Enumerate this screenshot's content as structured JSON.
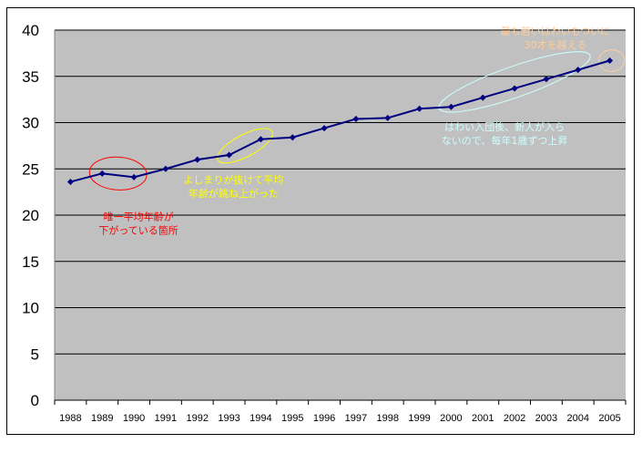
{
  "chart_data": {
    "type": "line",
    "title": "",
    "xlabel": "",
    "ylabel": "",
    "ylim": [
      0,
      40
    ],
    "yticks": [
      0,
      5,
      10,
      15,
      20,
      25,
      30,
      35,
      40
    ],
    "categories": [
      "1988",
      "1989",
      "1990",
      "1991",
      "1992",
      "1993",
      "1994",
      "1995",
      "1996",
      "1997",
      "1998",
      "1999",
      "2000",
      "2001",
      "2002",
      "2003",
      "2004",
      "2005"
    ],
    "series": [
      {
        "values": [
          23.6,
          24.5,
          24.1,
          25.0,
          26.0,
          26.5,
          28.2,
          28.4,
          29.4,
          30.4,
          30.5,
          31.5,
          31.7,
          32.7,
          33.7,
          34.7,
          35.7,
          36.7
        ]
      }
    ],
    "grid": true,
    "legend": "none",
    "colors": {
      "plot_background": "#c0c0c0",
      "line": "#000080",
      "gridline": "#000000"
    },
    "annotations": [
      {
        "lines": [
          "唯一平均年齢が",
          "下がっている箇所"
        ],
        "color": "#ff0000",
        "highlight_year": "1989"
      },
      {
        "lines": [
          "よしまりが抜けて平均",
          "年齢が跳ね上がった"
        ],
        "color": "#ffff00",
        "highlight_year": "1993"
      },
      {
        "lines": [
          "はわい入団後、新人が入ら",
          "ないので、毎年1歳ずつ上昇"
        ],
        "color": "#ccffff",
        "highlight_year": "2000"
      },
      {
        "lines": [
          "最も若いはわいもついに",
          "30才を越える"
        ],
        "color": "#ffcc99",
        "highlight_year": "2005"
      }
    ]
  }
}
